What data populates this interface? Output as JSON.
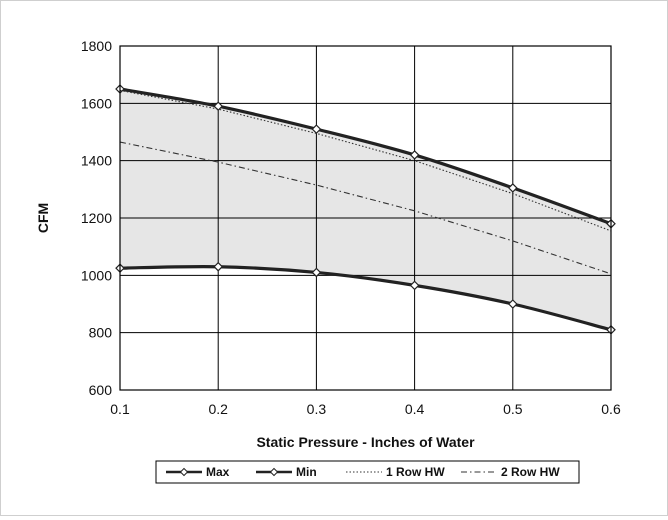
{
  "chart_data": {
    "type": "line",
    "title": "",
    "xlabel": "Static Pressure - Inches of Water",
    "ylabel": "CFM",
    "xlim": [
      0.1,
      0.6
    ],
    "ylim": [
      600,
      1800
    ],
    "x_ticks": [
      "0.1",
      "0.2",
      "0.3",
      "0.4",
      "0.5",
      "0.6"
    ],
    "y_ticks": [
      "600",
      "800",
      "1000",
      "1200",
      "1400",
      "1600",
      "1800"
    ],
    "grid": true,
    "legend_position": "bottom",
    "shaded_region": "between Max and Min",
    "series": [
      {
        "name": "Max",
        "style": "thick-solid-with-diamond-markers",
        "x": [
          0.1,
          0.2,
          0.3,
          0.4,
          0.5,
          0.6
        ],
        "y": [
          1650,
          1590,
          1510,
          1420,
          1305,
          1180
        ]
      },
      {
        "name": "Min",
        "style": "thick-solid-with-diamond-markers",
        "x": [
          0.1,
          0.2,
          0.3,
          0.4,
          0.5,
          0.6
        ],
        "y": [
          1025,
          1030,
          1010,
          965,
          900,
          810
        ]
      },
      {
        "name": "1 Row HW",
        "style": "dotted",
        "x": [
          0.1,
          0.2,
          0.3,
          0.4,
          0.5,
          0.6
        ],
        "y": [
          1645,
          1580,
          1495,
          1400,
          1285,
          1155
        ]
      },
      {
        "name": "2 Row HW",
        "style": "dash-dot",
        "x": [
          0.1,
          0.2,
          0.3,
          0.4,
          0.5,
          0.6
        ],
        "y": [
          1465,
          1395,
          1315,
          1225,
          1120,
          1005
        ]
      }
    ]
  }
}
